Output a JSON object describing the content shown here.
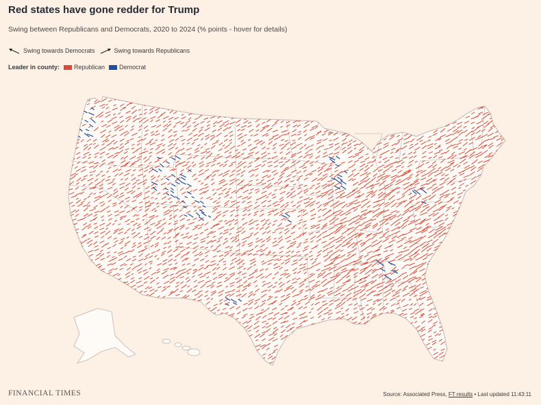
{
  "header": {
    "title": "Red states have gone redder for Trump",
    "subtitle": "Swing between Republicans and Democrats, 2020 to 2024 (% points - hover for details)"
  },
  "swing_legend": {
    "toward_dem_label": "Swing towards Democrats",
    "toward_rep_label": "Swing towards Republicans"
  },
  "leader_legend": {
    "label": "Leader in county:",
    "items": [
      {
        "label": "Republican",
        "color": "#d94a38"
      },
      {
        "label": "Democrat",
        "color": "#1f4e9e"
      }
    ]
  },
  "colors": {
    "republican": "#d94a38",
    "democrat": "#1f4e9e",
    "land": "#fefaf6",
    "border": "#c9c1bd"
  },
  "footer": {
    "logo": "FINANCIAL TIMES",
    "source_prefix": "Source: Associated Press,",
    "source_link": "FT results",
    "source_suffix": "• Last updated 11:43:11"
  }
}
